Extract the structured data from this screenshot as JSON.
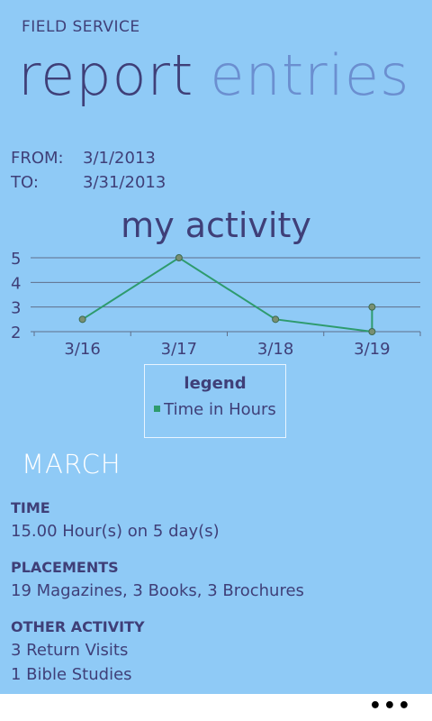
{
  "app": {
    "title": "FIELD SERVICE"
  },
  "pivot": {
    "active": "report",
    "inactive": "entries"
  },
  "range": {
    "from_label": "FROM:",
    "from_value": "3/1/2013",
    "to_label": "TO:",
    "to_value": "3/31/2013"
  },
  "chart_title": "my activity",
  "chart_data": {
    "type": "line",
    "categories": [
      "3/16",
      "3/17",
      "3/18",
      "3/19"
    ],
    "series": [
      {
        "name": "Time in Hours",
        "values": [
          2.5,
          5,
          2.5,
          2,
          3
        ],
        "x": [
          0,
          1,
          2,
          3,
          3
        ]
      }
    ],
    "y_ticks": [
      "2",
      "3",
      "4",
      "5"
    ],
    "ylim": [
      2,
      5
    ],
    "grid": true,
    "color": "#2e9b6e"
  },
  "legend": {
    "title": "legend",
    "item": "Time in Hours"
  },
  "month": "MARCH",
  "sections": {
    "time": {
      "heading": "TIME",
      "value": "15.00 Hour(s) on 5 day(s)"
    },
    "placements": {
      "heading": "PLACEMENTS",
      "value": "19 Magazines, 3 Books, 3 Brochures"
    },
    "other": {
      "heading": "OTHER ACTIVITY",
      "line1": "3 Return Visits",
      "line2": "1 Bible Studies"
    }
  },
  "appbar": {
    "more": "•••"
  }
}
